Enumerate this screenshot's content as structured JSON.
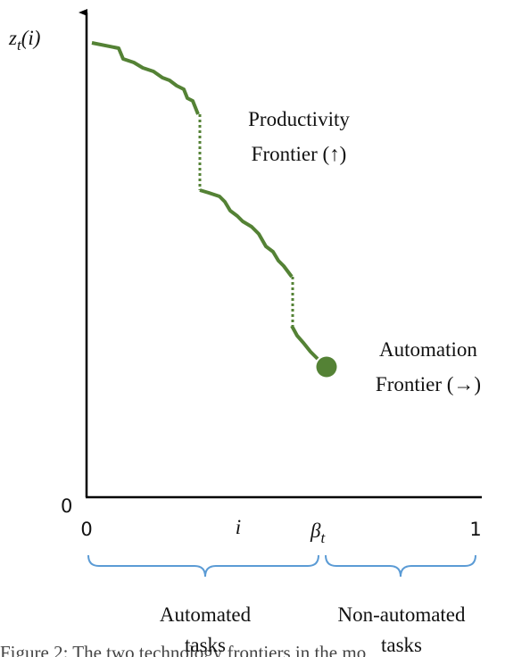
{
  "axis_labels": {
    "y": {
      "base": "z",
      "subscript": "t",
      "argument": "(i)"
    },
    "origin": "0",
    "x_start": "0",
    "x_mid": "i",
    "beta": {
      "base": "β",
      "subscript": "t"
    },
    "x_end": "1"
  },
  "annotations": {
    "productivity_frontier": [
      "Productivity",
      "Frontier (↑)"
    ],
    "automation_frontier": [
      "Automation",
      "Frontier (→)"
    ]
  },
  "groups": {
    "automated": [
      "Automated",
      "tasks"
    ],
    "non_automated": [
      "Non-automated",
      "tasks"
    ]
  },
  "caption": "Figure 2: The two technology frontiers in the mo"
}
